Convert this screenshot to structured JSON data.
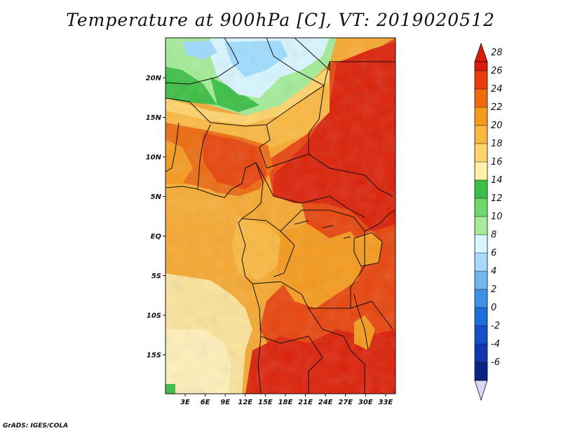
{
  "title": "Temperature at 900hPa [C], VT: 2019020512",
  "credit": "GrADS: IGES/COLA",
  "map": {
    "lat_ticks": [
      {
        "label": "20N",
        "value": 20
      },
      {
        "label": "15N",
        "value": 15
      },
      {
        "label": "10N",
        "value": 10
      },
      {
        "label": "5N",
        "value": 5
      },
      {
        "label": "EQ",
        "value": 0
      },
      {
        "label": "5S",
        "value": -5
      },
      {
        "label": "10S",
        "value": -10
      },
      {
        "label": "15S",
        "value": -15
      }
    ],
    "lon_ticks": [
      {
        "label": "3E",
        "value": 3
      },
      {
        "label": "6E",
        "value": 6
      },
      {
        "label": "9E",
        "value": 9
      },
      {
        "label": "12E",
        "value": 12
      },
      {
        "label": "15E",
        "value": 15
      },
      {
        "label": "18E",
        "value": 18
      },
      {
        "label": "21E",
        "value": 21
      },
      {
        "label": "24E",
        "value": 24
      },
      {
        "label": "27E",
        "value": 27
      },
      {
        "label": "30E",
        "value": 30
      },
      {
        "label": "33E",
        "value": 33
      }
    ],
    "field_colors": {
      "cold": "#9fdcff",
      "cool": "#d8f6ff",
      "green": "#3cbf44",
      "light_green": "#a4ec98",
      "pale_yellow": "#fae39b",
      "yellow": "#ffd46b",
      "light_orange": "#fbb840",
      "orange": "#f59a1c",
      "dark_orange": "#ed6b10",
      "red_orange": "#e8440c",
      "red": "#dc2108",
      "land_border": "#111111"
    }
  },
  "colorbar": {
    "levels": [
      {
        "label": "28",
        "color": "#dc1a08"
      },
      {
        "label": "26",
        "color": "#e8400c"
      },
      {
        "label": "24",
        "color": "#f06a10"
      },
      {
        "label": "22",
        "color": "#f59a1c"
      },
      {
        "label": "20",
        "color": "#fbb840"
      },
      {
        "label": "18",
        "color": "#ffd46b"
      },
      {
        "label": "16",
        "color": "#fff0a8"
      },
      {
        "label": "14",
        "color": "#3cbf44"
      },
      {
        "label": "12",
        "color": "#6fd86a"
      },
      {
        "label": "10",
        "color": "#a4ec98"
      },
      {
        "label": "8",
        "color": "#d8f6ff"
      },
      {
        "label": "6",
        "color": "#a6dbfb"
      },
      {
        "label": "4",
        "color": "#6fb7f0"
      },
      {
        "label": "2",
        "color": "#3c92e6"
      },
      {
        "label": "0",
        "color": "#1e6ed9"
      },
      {
        "label": "-2",
        "color": "#1650c8"
      },
      {
        "label": "-4",
        "color": "#0e37b0"
      },
      {
        "label": "-6",
        "color": "#0a2484"
      }
    ],
    "top_triangle_color": "#d81e08",
    "bottom_triangle_color": "#d8d8f8"
  }
}
